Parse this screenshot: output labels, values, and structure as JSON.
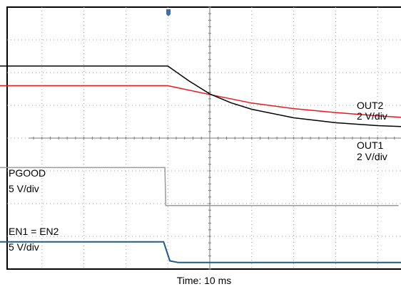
{
  "chart_data": {
    "type": "line",
    "title": "",
    "xlabel": "Time: 10 ms",
    "ylabel": "",
    "x_unit": "div",
    "xlim": [
      0,
      10
    ],
    "ylim": [
      -4,
      4
    ],
    "grid": true,
    "trigger_marker_color": "#3b6fb6",
    "channels": [
      {
        "label_lines": [
          "OUT2",
          "2 V/div"
        ],
        "color": "#e8191e",
        "points": [
          [
            0,
            1.6
          ],
          [
            4,
            1.6
          ],
          [
            5,
            1.33
          ],
          [
            6,
            1.07
          ],
          [
            7,
            0.9
          ],
          [
            8,
            0.78
          ],
          [
            9,
            0.68
          ],
          [
            10,
            0.6
          ]
        ]
      },
      {
        "label_lines": [
          "OUT1",
          "2 V/div"
        ],
        "color": "#000000",
        "points": [
          [
            0,
            2.2
          ],
          [
            4,
            2.2
          ],
          [
            4.5,
            1.75
          ],
          [
            5,
            1.35
          ],
          [
            5.5,
            1.08
          ],
          [
            6,
            0.88
          ],
          [
            7,
            0.62
          ],
          [
            8,
            0.47
          ],
          [
            9,
            0.38
          ],
          [
            10,
            0.33
          ]
        ]
      },
      {
        "label_lines": [
          "PGOOD",
          "5 V/div"
        ],
        "color": "#9a9a9a",
        "points": [
          [
            0,
            -0.9
          ],
          [
            3.93,
            -0.9
          ],
          [
            3.95,
            -2.06
          ],
          [
            9.5,
            -2.06
          ]
        ]
      },
      {
        "label_lines": [
          "EN1 = EN2",
          "5 V/div"
        ],
        "color": "#1f5a8a",
        "points": [
          [
            0,
            -3.17
          ],
          [
            3.9,
            -3.17
          ],
          [
            4.05,
            -3.75
          ],
          [
            4.25,
            -3.8
          ],
          [
            10,
            -3.8
          ]
        ]
      }
    ]
  }
}
